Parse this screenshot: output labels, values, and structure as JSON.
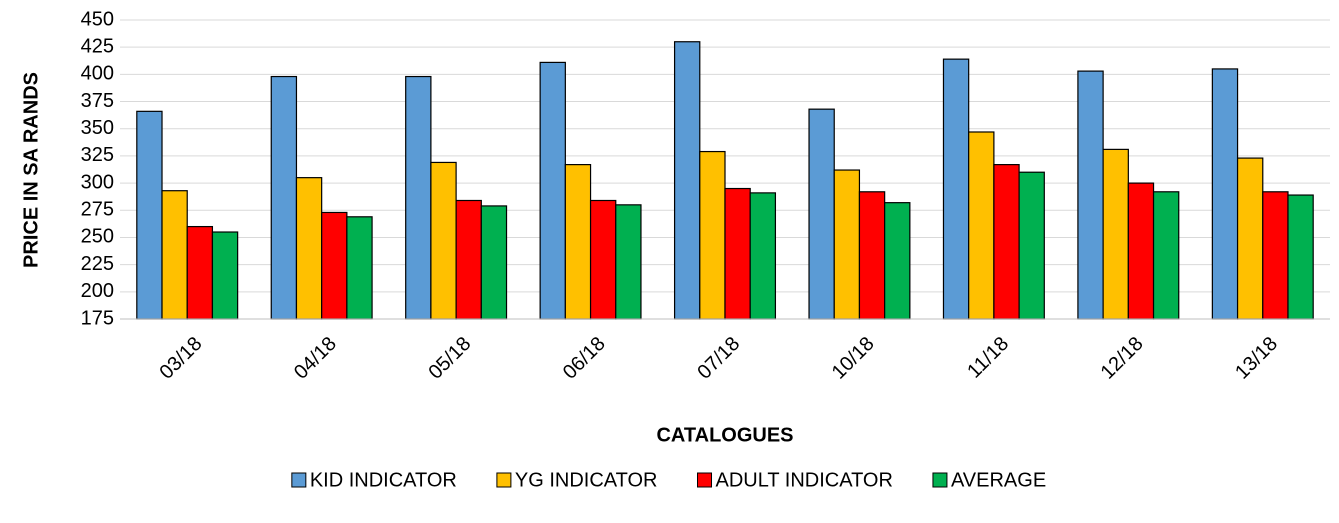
{
  "chart_data": {
    "type": "bar",
    "x_label": "CATALOGUES",
    "y_label": "PRICE IN SA RANDS",
    "categories": [
      "03/18",
      "04/18",
      "05/18",
      "06/18",
      "07/18",
      "10/18",
      "11/18",
      "12/18",
      "13/18"
    ],
    "series": [
      {
        "name": "KID INDICATOR",
        "color": "#5b9bd5",
        "values": [
          366,
          398,
          398,
          411,
          430,
          368,
          414,
          403,
          405
        ]
      },
      {
        "name": "YG INDICATOR",
        "color": "#ffc000",
        "values": [
          293,
          305,
          319,
          317,
          329,
          312,
          347,
          331,
          323
        ]
      },
      {
        "name": "ADULT INDICATOR",
        "color": "#ff0000",
        "values": [
          260,
          273,
          284,
          284,
          295,
          292,
          317,
          300,
          292
        ]
      },
      {
        "name": "AVERAGE",
        "color": "#00b050",
        "values": [
          255,
          269,
          279,
          280,
          291,
          282,
          310,
          292,
          289
        ]
      }
    ],
    "ylim": [
      175,
      450
    ],
    "yticks": [
      175,
      200,
      225,
      250,
      275,
      300,
      325,
      350,
      375,
      400,
      425,
      450
    ],
    "grid": true,
    "legend": "bottom"
  }
}
